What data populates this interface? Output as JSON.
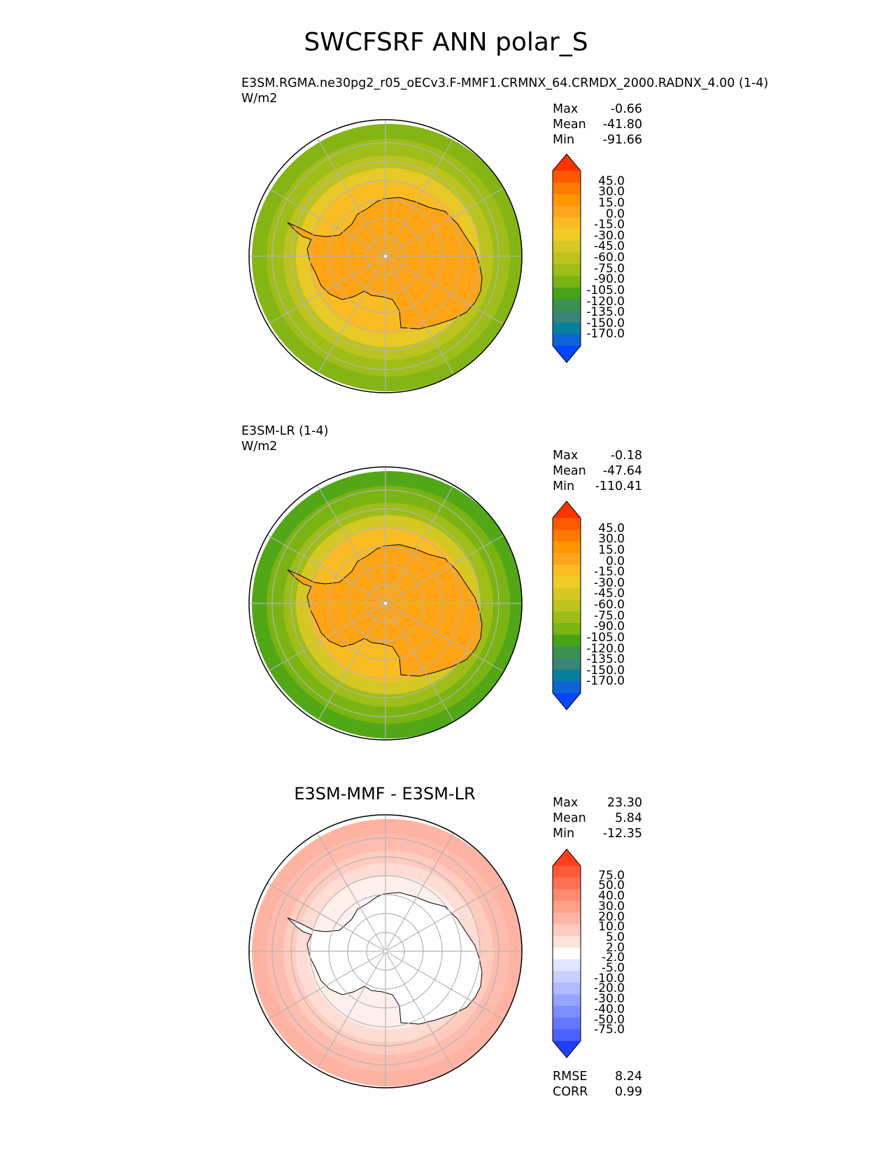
{
  "title": "SWCFSRF ANN polar_S",
  "panels": [
    {
      "id": "test",
      "label_line1": "E3SM.RGMA.ne30pg2_r05_oECv3.F-MMF1.CRMNX_64.CRMDX_2000.RADNX_4.00 (1-4)",
      "label_line2": "W/m2",
      "stats": [
        {
          "name": "Max",
          "value": "-0.66"
        },
        {
          "name": "Mean",
          "value": "-41.80"
        },
        {
          "name": "Min",
          "value": "-91.66"
        }
      ],
      "colorbar": {
        "labels": [
          "45.0",
          "30.0",
          "15.0",
          "0.0",
          "-15.0",
          "-30.0",
          "-45.0",
          "-60.0",
          "-75.0",
          "-90.0",
          "-105.0",
          "-120.0",
          "-135.0",
          "-150.0",
          "-170.0"
        ],
        "colors": [
          "#ff3300",
          "#ff5a00",
          "#ff7a00",
          "#ff9500",
          "#ffa41f",
          "#f9bd23",
          "#eecc25",
          "#d6c824",
          "#bcc31f",
          "#9ebd18",
          "#7ab412",
          "#4aa317",
          "#3c9050",
          "#3a8578",
          "#087f9f",
          "#0e63d4",
          "#0047ff"
        ]
      },
      "map": {
        "land": "#ffa414",
        "ocean_rings": [
          "#f9bd23",
          "#e7c928",
          "#bcc31f",
          "#9ebd18",
          "#84b515"
        ]
      }
    },
    {
      "id": "ref",
      "label_line1": "E3SM-LR (1-4)",
      "label_line2": "W/m2",
      "stats": [
        {
          "name": "Max",
          "value": "-0.18"
        },
        {
          "name": "Mean",
          "value": "-47.64"
        },
        {
          "name": "Min",
          "value": "-110.41"
        }
      ],
      "colorbar": {
        "labels": [
          "45.0",
          "30.0",
          "15.0",
          "0.0",
          "-15.0",
          "-30.0",
          "-45.0",
          "-60.0",
          "-75.0",
          "-90.0",
          "-105.0",
          "-120.0",
          "-135.0",
          "-150.0",
          "-170.0"
        ],
        "colors": [
          "#ff3300",
          "#ff5a00",
          "#ff7a00",
          "#ff9500",
          "#ffa41f",
          "#f9bd23",
          "#eecc25",
          "#d6c824",
          "#bcc31f",
          "#9ebd18",
          "#7ab412",
          "#4aa317",
          "#3c9050",
          "#3a8578",
          "#087f9f",
          "#0e63d4",
          "#0047ff"
        ]
      },
      "map": {
        "land": "#ffa414",
        "ocean_rings": [
          "#f9bd23",
          "#d6c824",
          "#9ebd18",
          "#7ab412",
          "#52a717"
        ]
      }
    },
    {
      "id": "diff",
      "title": "E3SM-MMF - E3SM-LR",
      "stats": [
        {
          "name": "Max",
          "value": "23.30"
        },
        {
          "name": "Mean",
          "value": "5.84"
        },
        {
          "name": "Min",
          "value": "-12.35"
        }
      ],
      "metrics": [
        {
          "name": "RMSE",
          "value": "8.24"
        },
        {
          "name": "CORR",
          "value": "0.99"
        }
      ],
      "colorbar": {
        "labels": [
          "75.0",
          "50.0",
          "40.0",
          "30.0",
          "20.0",
          "10.0",
          "5.0",
          "2.0",
          "-2.0",
          "-5.0",
          "-10.0",
          "-20.0",
          "-30.0",
          "-40.0",
          "-50.0",
          "-75.0"
        ],
        "colors": [
          "#ff3e1e",
          "#ff5a3c",
          "#ff7155",
          "#ff8a70",
          "#ffa08a",
          "#ffb5a3",
          "#ffccbf",
          "#ffe2da",
          "#ffffff",
          "#e2e6ff",
          "#c8d0ff",
          "#afbaff",
          "#96a4ff",
          "#7d8eff",
          "#6478ff",
          "#4b62ff",
          "#1f3fff"
        ]
      },
      "map": {
        "land": "#ffffff",
        "ocean_rings": [
          "#fff0ec",
          "#ffdcd4",
          "#ffccbf",
          "#ffbcae",
          "#ffb3a2"
        ]
      }
    }
  ]
}
